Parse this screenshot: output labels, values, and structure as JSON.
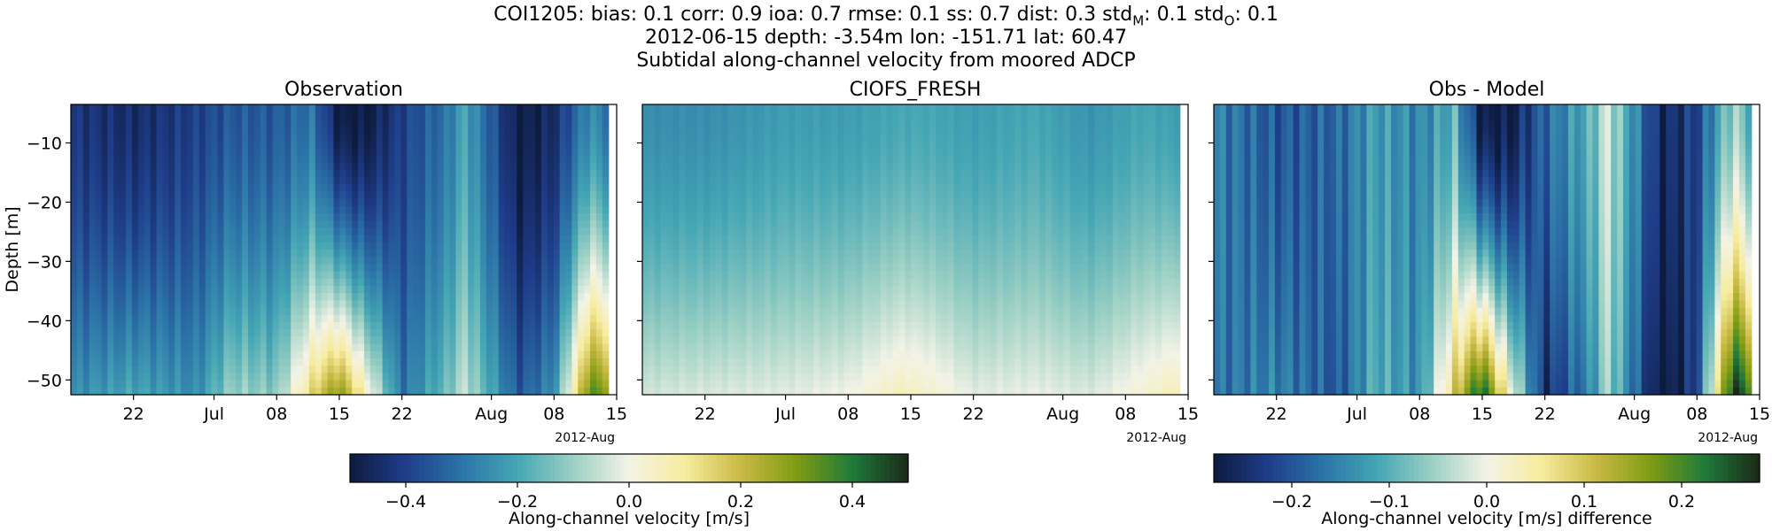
{
  "title": {
    "line1_parts": [
      {
        "t": "COI1205: bias: 0.1  corr: 0.9  ioa: 0.7  rmse: 0.1  ss: 0.7  dist: 0.3  std"
      },
      {
        "t": "M",
        "sub": true
      },
      {
        "t": ": 0.1  std"
      },
      {
        "t": "O",
        "sub": true
      },
      {
        "t": ": 0.1"
      }
    ],
    "line2": "2012-06-15 depth: -3.54m lon: -151.71 lat: 60.47",
    "line3": "Subtidal along-channel velocity from moored ADCP"
  },
  "colors": {
    "cmap_stops": [
      "#0d1b3e",
      "#1f3d8a",
      "#2c74a8",
      "#45a6b4",
      "#9cd0c4",
      "#f3f3e6",
      "#f7ec9e",
      "#c9ba45",
      "#7f9c12",
      "#1f7a3a",
      "#1b2a18"
    ],
    "frame": "#000000"
  },
  "chart_data": [
    {
      "type": "heatmap",
      "title": "Observation",
      "ylabel": "Depth [m]",
      "xlabel": "",
      "x_ticks": [
        "22",
        "Jul",
        "08",
        "15",
        "22",
        "Aug",
        "08",
        "15"
      ],
      "x_offset_label": "2012-Aug",
      "y_ticks": [
        -10,
        -20,
        -30,
        -40,
        -50
      ],
      "ylim": [
        -52.5,
        -3.5
      ],
      "xlim": [
        "2012-06-15",
        "2012-08-15"
      ],
      "colorbar": "velocity",
      "profile_surface_to_bottom": [
        {
          "date": "2012-06-15",
          "surface": -0.42,
          "bottom": -0.25
        },
        {
          "date": "2012-06-22",
          "surface": -0.45,
          "bottom": -0.2
        },
        {
          "date": "2012-06-29",
          "surface": -0.4,
          "bottom": -0.25
        },
        {
          "date": "2012-07-03",
          "surface": -0.35,
          "bottom": -0.1
        },
        {
          "date": "2012-07-08",
          "surface": -0.35,
          "bottom": -0.12
        },
        {
          "date": "2012-07-12",
          "surface": -0.3,
          "bottom": 0.15
        },
        {
          "date": "2012-07-15",
          "surface": -0.5,
          "bottom": 0.3
        },
        {
          "date": "2012-07-18",
          "surface": -0.5,
          "bottom": 0.05
        },
        {
          "date": "2012-07-22",
          "surface": -0.4,
          "bottom": -0.3
        },
        {
          "date": "2012-07-27",
          "surface": -0.3,
          "bottom": -0.15
        },
        {
          "date": "2012-07-29",
          "surface": -0.2,
          "bottom": -0.05
        },
        {
          "date": "2012-08-04",
          "surface": -0.5,
          "bottom": -0.35
        },
        {
          "date": "2012-08-08",
          "surface": -0.45,
          "bottom": -0.25
        },
        {
          "date": "2012-08-12",
          "surface": -0.25,
          "bottom": 0.35
        },
        {
          "date": "2012-08-14",
          "surface": -0.3,
          "bottom": 0.3
        }
      ]
    },
    {
      "type": "heatmap",
      "title": "CIOFS_FRESH",
      "ylabel": "",
      "xlabel": "",
      "x_ticks": [
        "22",
        "Jul",
        "08",
        "15",
        "22",
        "Aug",
        "08",
        "15"
      ],
      "x_offset_label": "2012-Aug",
      "y_ticks": [
        -10,
        -20,
        -30,
        -40,
        -50
      ],
      "ylim": [
        -52.5,
        -3.5
      ],
      "xlim": [
        "2012-06-15",
        "2012-08-15"
      ],
      "colorbar": "velocity",
      "profile_surface_to_bottom": [
        {
          "date": "2012-06-15",
          "surface": -0.25,
          "bottom": -0.04
        },
        {
          "date": "2012-06-22",
          "surface": -0.25,
          "bottom": -0.03
        },
        {
          "date": "2012-07-01",
          "surface": -0.22,
          "bottom": -0.02
        },
        {
          "date": "2012-07-08",
          "surface": -0.22,
          "bottom": 0.0
        },
        {
          "date": "2012-07-14",
          "surface": -0.2,
          "bottom": 0.06
        },
        {
          "date": "2012-07-17",
          "surface": -0.2,
          "bottom": 0.04
        },
        {
          "date": "2012-07-22",
          "surface": -0.22,
          "bottom": -0.02
        },
        {
          "date": "2012-07-29",
          "surface": -0.2,
          "bottom": -0.01
        },
        {
          "date": "2012-08-04",
          "surface": -0.24,
          "bottom": -0.03
        },
        {
          "date": "2012-08-10",
          "surface": -0.2,
          "bottom": 0.03
        },
        {
          "date": "2012-08-14",
          "surface": -0.22,
          "bottom": 0.07
        }
      ]
    },
    {
      "type": "heatmap",
      "title": "Obs - Model",
      "ylabel": "",
      "xlabel": "",
      "x_ticks": [
        "22",
        "Jul",
        "08",
        "15",
        "22",
        "Aug",
        "08",
        "15"
      ],
      "x_offset_label": "2012-Aug",
      "y_ticks": [
        -10,
        -20,
        -30,
        -40,
        -50
      ],
      "ylim": [
        -52.5,
        -3.5
      ],
      "xlim": [
        "2012-06-15",
        "2012-08-15"
      ],
      "colorbar": "difference",
      "profile_surface_to_bottom": [
        {
          "date": "2012-06-15",
          "surface": -0.15,
          "bottom": -0.17
        },
        {
          "date": "2012-06-22",
          "surface": -0.2,
          "bottom": -0.15
        },
        {
          "date": "2012-06-29",
          "surface": -0.18,
          "bottom": -0.2
        },
        {
          "date": "2012-07-03",
          "surface": -0.12,
          "bottom": -0.1
        },
        {
          "date": "2012-07-08",
          "surface": -0.15,
          "bottom": -0.14
        },
        {
          "date": "2012-07-12",
          "surface": -0.1,
          "bottom": 0.1
        },
        {
          "date": "2012-07-15",
          "surface": -0.28,
          "bottom": 0.25
        },
        {
          "date": "2012-07-18",
          "surface": -0.28,
          "bottom": 0.02
        },
        {
          "date": "2012-07-22",
          "surface": -0.18,
          "bottom": -0.25
        },
        {
          "date": "2012-07-27",
          "surface": -0.1,
          "bottom": -0.15
        },
        {
          "date": "2012-07-29",
          "surface": -0.02,
          "bottom": -0.05
        },
        {
          "date": "2012-08-04",
          "surface": -0.26,
          "bottom": -0.3
        },
        {
          "date": "2012-08-08",
          "surface": -0.22,
          "bottom": -0.22
        },
        {
          "date": "2012-08-12",
          "surface": -0.05,
          "bottom": 0.28
        },
        {
          "date": "2012-08-14",
          "surface": -0.1,
          "bottom": 0.22
        }
      ]
    }
  ],
  "colorbars": {
    "velocity": {
      "label": "Along-channel velocity [m/s]",
      "range": [
        -0.5,
        0.5
      ],
      "ticks": [
        {
          "v": -0.4,
          "t": "−0.4"
        },
        {
          "v": -0.2,
          "t": "−0.2"
        },
        {
          "v": 0.0,
          "t": "0.0"
        },
        {
          "v": 0.2,
          "t": "0.2"
        },
        {
          "v": 0.4,
          "t": "0.4"
        }
      ]
    },
    "difference": {
      "label": "Along-channel velocity [m/s] difference",
      "range": [
        -0.28,
        0.28
      ],
      "ticks": [
        {
          "v": -0.2,
          "t": "−0.2"
        },
        {
          "v": -0.1,
          "t": "−0.1"
        },
        {
          "v": 0.0,
          "t": "0.0"
        },
        {
          "v": 0.1,
          "t": "0.1"
        },
        {
          "v": 0.2,
          "t": "0.2"
        }
      ]
    }
  }
}
